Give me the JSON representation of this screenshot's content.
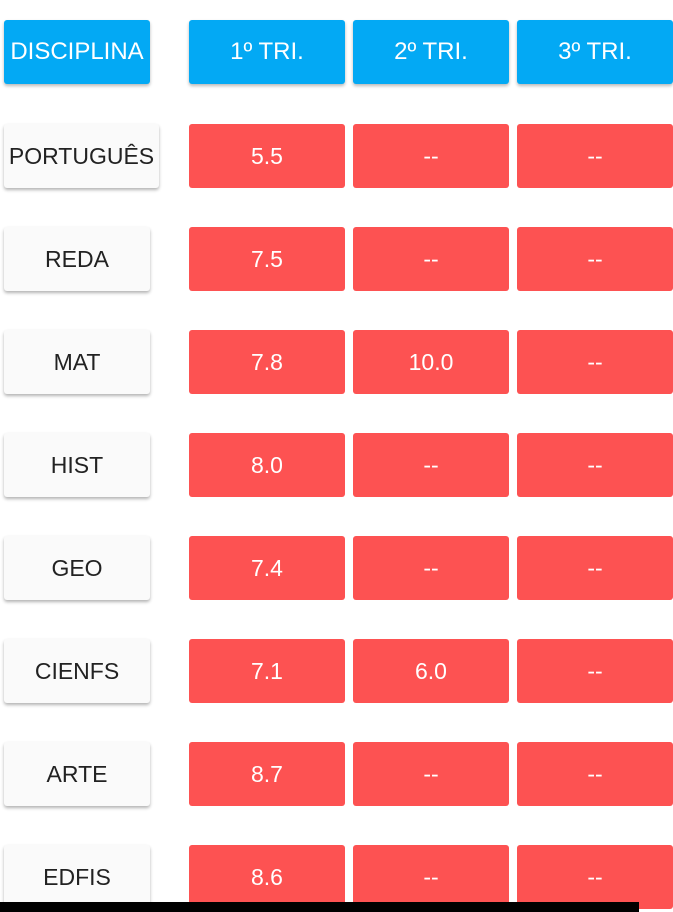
{
  "header": {
    "subject_label": "DISCIPLINA",
    "columns": [
      "1º TRI.",
      "2º TRI.",
      "3º TRI."
    ]
  },
  "colors": {
    "header_bg": "#03a9f4",
    "grade_bg": "#fd5252",
    "subject_bg": "#fafafa"
  },
  "rows": [
    {
      "subject": "PORTUGUÊS",
      "grades": [
        "5.5",
        "--",
        "--"
      ]
    },
    {
      "subject": "REDA",
      "grades": [
        "7.5",
        "--",
        "--"
      ]
    },
    {
      "subject": "MAT",
      "grades": [
        "7.8",
        "10.0",
        "--"
      ]
    },
    {
      "subject": "HIST",
      "grades": [
        "8.0",
        "--",
        "--"
      ]
    },
    {
      "subject": "GEO",
      "grades": [
        "7.4",
        "--",
        "--"
      ]
    },
    {
      "subject": "CIENFS",
      "grades": [
        "7.1",
        "6.0",
        "--"
      ]
    },
    {
      "subject": "ARTE",
      "grades": [
        "8.7",
        "--",
        "--"
      ]
    },
    {
      "subject": "EDFIS",
      "grades": [
        "8.6",
        "--",
        "--"
      ]
    }
  ]
}
